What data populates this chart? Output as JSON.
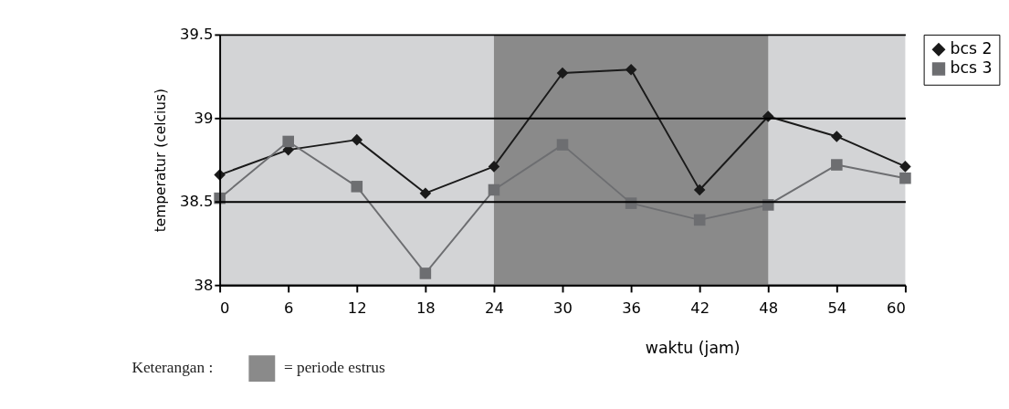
{
  "chart_data": {
    "type": "line",
    "xlabel": "waktu (jam)",
    "ylabel": "temperatur (celcius)",
    "x": [
      0,
      6,
      12,
      18,
      24,
      30,
      36,
      42,
      48,
      54,
      60
    ],
    "series": [
      {
        "name": "bcs 2",
        "color": "#1a1a1a",
        "marker": "diamond",
        "values": [
          38.66,
          38.81,
          38.87,
          38.55,
          38.71,
          39.27,
          39.29,
          38.57,
          39.01,
          38.89,
          38.71
        ]
      },
      {
        "name": "bcs 3",
        "color": "#6d6e71",
        "marker": "square",
        "values": [
          38.52,
          38.86,
          38.59,
          38.07,
          38.57,
          38.84,
          38.49,
          38.39,
          38.48,
          38.72,
          38.64
        ]
      }
    ],
    "xlim": [
      0,
      60
    ],
    "xticks": [
      0,
      6,
      12,
      18,
      24,
      30,
      36,
      42,
      48,
      54,
      60
    ],
    "ylim": [
      38,
      39.5
    ],
    "yticks": [
      38,
      38.5,
      39,
      39.5
    ],
    "grid": "y",
    "legend": "right",
    "line_style": "solid",
    "bands": [
      {
        "axis": "x",
        "from": 24,
        "to": 48,
        "label": "= periode estrus",
        "color": "#8a8a8a"
      }
    ],
    "annotations": [
      "Keterangan :"
    ]
  }
}
